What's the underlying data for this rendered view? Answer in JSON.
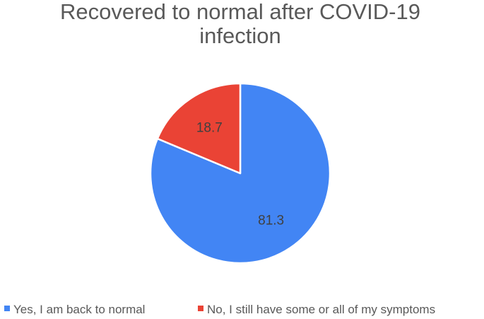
{
  "chart_data": {
    "type": "pie",
    "title": "Recovered to normal after COVID-19 infection",
    "title_lines": [
      "Recovered to normal after COVID-19",
      "infection"
    ],
    "categories": [
      "Yes, I am back to normal",
      "No, I still have some or all of my symptoms"
    ],
    "values": [
      81.3,
      18.7
    ],
    "data_labels": [
      "81.3",
      "18.7"
    ],
    "colors": [
      "#4285F4",
      "#EA4335"
    ],
    "start_angle": "12 o'clock, clockwise",
    "legend_position": "bottom",
    "grid": false
  }
}
